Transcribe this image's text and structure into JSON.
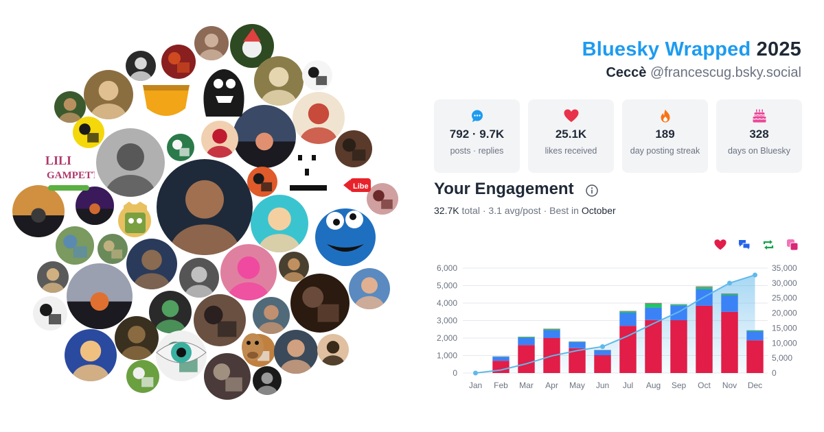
{
  "header": {
    "brand": "Bluesky Wrapped",
    "year": "2025",
    "display_name": "Ceccè",
    "handle": "@francescug.bsky.social"
  },
  "stats": [
    {
      "icon": "speech-bubble-icon",
      "value": "792 · 9.7K",
      "label": "posts · replies"
    },
    {
      "icon": "heart-icon",
      "value": "25.1K",
      "label": "likes received"
    },
    {
      "icon": "flame-icon",
      "value": "189",
      "label": "day posting streak"
    },
    {
      "icon": "cake-icon",
      "value": "328",
      "label": "days on Bluesky"
    }
  ],
  "engagement": {
    "title": "Your Engagement",
    "total": "32.7K",
    "total_label": "total",
    "avg": "3.1 avg/post",
    "best_prefix": "Best in",
    "best_month": "October",
    "sep": " · "
  },
  "colors": {
    "likes": "#e11d48",
    "replies": "#3b82f6",
    "reposts": "#22c55e",
    "quotes": "#ec4899",
    "cumulative": "#60b8ea",
    "brand": "#1d9bf0"
  },
  "chart_data": {
    "type": "bar",
    "stacked": true,
    "categories": [
      "Jan",
      "Feb",
      "Mar",
      "Apr",
      "May",
      "Jun",
      "Jul",
      "Aug",
      "Sep",
      "Oct",
      "Nov",
      "Dec"
    ],
    "legend_icons": [
      "heart-icon",
      "replies-icon",
      "repost-icon",
      "quote-icon"
    ],
    "series": [
      {
        "key": "likes",
        "axis": "left",
        "values": [
          0,
          700,
          1600,
          2000,
          1420,
          1020,
          2700,
          3030,
          3020,
          3850,
          3500,
          1870
        ]
      },
      {
        "key": "replies",
        "axis": "left",
        "values": [
          0,
          230,
          420,
          450,
          350,
          280,
          750,
          720,
          850,
          950,
          950,
          520
        ]
      },
      {
        "key": "reposts",
        "axis": "left",
        "values": [
          0,
          20,
          50,
          70,
          30,
          20,
          80,
          230,
          60,
          130,
          80,
          50
        ]
      },
      {
        "key": "quotes",
        "axis": "left",
        "values": [
          0,
          10,
          10,
          20,
          10,
          10,
          20,
          30,
          10,
          30,
          20,
          10
        ]
      },
      {
        "key": "cumulative",
        "type": "area",
        "axis": "right",
        "values": [
          0,
          1000,
          3100,
          5700,
          7500,
          8800,
          12400,
          16500,
          20400,
          25400,
          30000,
          32700
        ]
      }
    ],
    "ylim": [
      0,
      6000
    ],
    "yticks": [
      "0",
      "1,000",
      "2,000",
      "3,000",
      "4,000",
      "5,000",
      "6,000"
    ],
    "y2lim": [
      0,
      35000
    ],
    "y2ticks": [
      "0",
      "5,000",
      "10,000",
      "15,000",
      "20,000",
      "25,000",
      "30,000",
      "35,000"
    ],
    "grid": true
  }
}
